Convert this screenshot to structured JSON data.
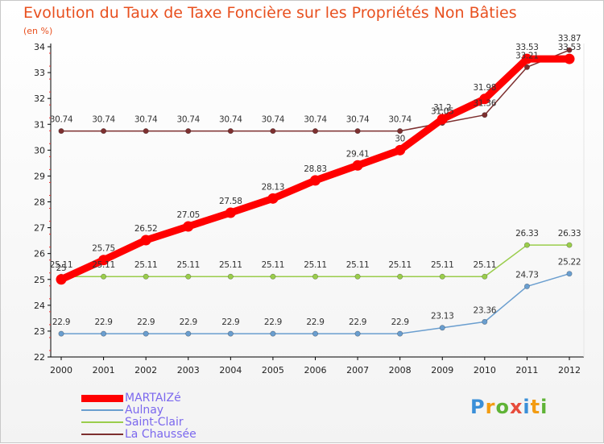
{
  "header": {
    "title": "Evolution du Taux de Taxe Foncière sur les Propriétés Non Bâties",
    "unit": "(en %)"
  },
  "colors": {
    "title": "#e8501f",
    "MARTAIZé": "#ff0000",
    "Aulnay": "#6a9ecf",
    "Saint-Clair": "#9acd4c",
    "La Chaussée": "#7d2f2f",
    "legend_text": "#7b68ee"
  },
  "branding": {
    "logo": "Proxiti"
  },
  "chart_data": {
    "type": "line",
    "title": "Evolution du Taux de Taxe Foncière sur les Propriétés Non Bâties",
    "ylabel": "(en %)",
    "xlabel": "",
    "x": [
      "2000",
      "2001",
      "2002",
      "2003",
      "2004",
      "2005",
      "2006",
      "2007",
      "2008",
      "2009",
      "2010",
      "2011",
      "2012"
    ],
    "ylim": [
      22,
      34
    ],
    "yticks": [
      22,
      23,
      24,
      25,
      26,
      27,
      28,
      29,
      30,
      31,
      32,
      33,
      34
    ],
    "grid": false,
    "legend_position": "bottom-left",
    "series": [
      {
        "name": "MARTAIZé",
        "values": [
          25,
          25.75,
          26.52,
          27.05,
          27.58,
          28.13,
          28.83,
          29.41,
          30,
          31.2,
          31.98,
          33.53,
          33.53
        ],
        "labels": [
          "25",
          "25.75",
          "26.52",
          "27.05",
          "27.58",
          "28.13",
          "28.83",
          "29.41",
          "30",
          "31.2",
          "31.98",
          "33.53",
          "33.53"
        ]
      },
      {
        "name": "Aulnay",
        "values": [
          22.9,
          22.9,
          22.9,
          22.9,
          22.9,
          22.9,
          22.9,
          22.9,
          22.9,
          23.13,
          23.36,
          24.73,
          25.22
        ],
        "labels": [
          "22.9",
          "22.9",
          "22.9",
          "22.9",
          "22.9",
          "22.9",
          "22.9",
          "22.9",
          "22.9",
          "23.13",
          "23.36",
          "24.73",
          "25.22"
        ]
      },
      {
        "name": "Saint-Clair",
        "values": [
          25.11,
          25.11,
          25.11,
          25.11,
          25.11,
          25.11,
          25.11,
          25.11,
          25.11,
          25.11,
          25.11,
          26.33,
          26.33
        ],
        "labels": [
          "25.11",
          "25.11",
          "25.11",
          "25.11",
          "25.11",
          "25.11",
          "25.11",
          "25.11",
          "25.11",
          "25.11",
          "25.11",
          "26.33",
          "26.33"
        ]
      },
      {
        "name": "La Chaussée",
        "values": [
          30.74,
          30.74,
          30.74,
          30.74,
          30.74,
          30.74,
          30.74,
          30.74,
          30.74,
          31.05,
          31.36,
          33.21,
          33.87
        ],
        "labels": [
          "30.74",
          "30.74",
          "30.74",
          "30.74",
          "30.74",
          "30.74",
          "30.74",
          "30.74",
          "30.74",
          "31.05",
          "31.36",
          "33.21",
          "33.87"
        ]
      }
    ]
  }
}
